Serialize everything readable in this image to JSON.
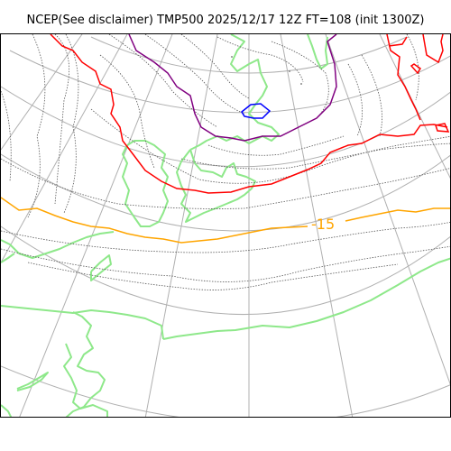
{
  "title": "NCEP(See disclaimer) TMP500 2025/12/17 12Z FT=108 (init 1300Z)",
  "map": {
    "contour_label": "-15",
    "colors": {
      "graticule": "#b0b0b0",
      "coastline": "#8ee88a",
      "fine_isotherm": "#555555",
      "isotherm_minus15": "#ffa500",
      "isotherm_red": "#ff0000",
      "isotherm_purple": "#800080",
      "isotherm_blue": "#0000ff"
    }
  }
}
